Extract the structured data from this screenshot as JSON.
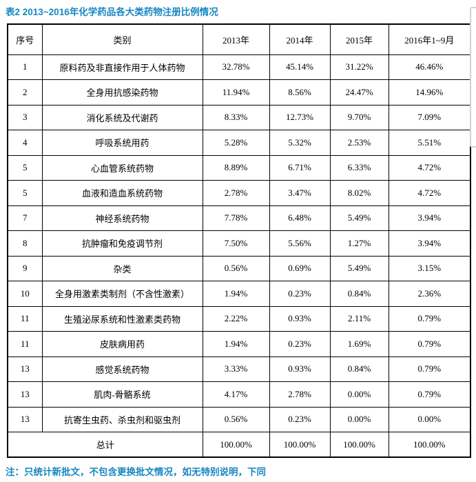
{
  "title": "表2 2013~2016年化学药品各大类药物注册比例情况",
  "footer_note": "注：只统计新批文，不包含更换批文情况，如无特别说明，下同",
  "accent_color": "#1786c1",
  "table": {
    "headers": [
      "序号",
      "类别",
      "2013年",
      "2014年",
      "2015年",
      "2016年1~9月"
    ],
    "rows": [
      {
        "seq": "1",
        "category": "原料药及非直接作用于人体药物",
        "values": [
          "32.78%",
          "45.14%",
          "31.22%",
          "46.46%"
        ]
      },
      {
        "seq": "2",
        "category": "全身用抗感染药物",
        "values": [
          "11.94%",
          "8.56%",
          "24.47%",
          "14.96%"
        ]
      },
      {
        "seq": "3",
        "category": "消化系统及代谢药",
        "values": [
          "8.33%",
          "12.73%",
          "9.70%",
          "7.09%"
        ]
      },
      {
        "seq": "4",
        "category": "呼吸系统用药",
        "values": [
          "5.28%",
          "5.32%",
          "2.53%",
          "5.51%"
        ]
      },
      {
        "seq": "5",
        "category": "心血管系统药物",
        "values": [
          "8.89%",
          "6.71%",
          "6.33%",
          "4.72%"
        ]
      },
      {
        "seq": "5",
        "category": "血液和造血系统药物",
        "values": [
          "2.78%",
          "3.47%",
          "8.02%",
          "4.72%"
        ]
      },
      {
        "seq": "7",
        "category": "神经系统药物",
        "values": [
          "7.78%",
          "6.48%",
          "5.49%",
          "3.94%"
        ]
      },
      {
        "seq": "8",
        "category": "抗肿瘤和免疫调节剂",
        "values": [
          "7.50%",
          "5.56%",
          "1.27%",
          "3.94%"
        ]
      },
      {
        "seq": "9",
        "category": "杂类",
        "values": [
          "0.56%",
          "0.69%",
          "5.49%",
          "3.15%"
        ]
      },
      {
        "seq": "10",
        "category": "全身用激素类制剂（不含性激素）",
        "values": [
          "1.94%",
          "0.23%",
          "0.84%",
          "2.36%"
        ]
      },
      {
        "seq": "11",
        "category": "生殖泌尿系统和性激素类药物",
        "values": [
          "2.22%",
          "0.93%",
          "2.11%",
          "0.79%"
        ]
      },
      {
        "seq": "11",
        "category": "皮肤病用药",
        "values": [
          "1.94%",
          "0.23%",
          "1.69%",
          "0.79%"
        ]
      },
      {
        "seq": "13",
        "category": "感觉系统药物",
        "values": [
          "3.33%",
          "0.93%",
          "0.84%",
          "0.79%"
        ]
      },
      {
        "seq": "13",
        "category": "肌肉-骨骼系统",
        "values": [
          "4.17%",
          "2.78%",
          "0.00%",
          "0.79%"
        ]
      },
      {
        "seq": "13",
        "category": "抗寄生虫药、杀虫剂和驱虫剂",
        "values": [
          "0.56%",
          "0.23%",
          "0.00%",
          "0.00%"
        ]
      }
    ],
    "total_row": {
      "label": "总计",
      "values": [
        "100.00%",
        "100.00%",
        "100.00%",
        "100.00%"
      ]
    }
  }
}
